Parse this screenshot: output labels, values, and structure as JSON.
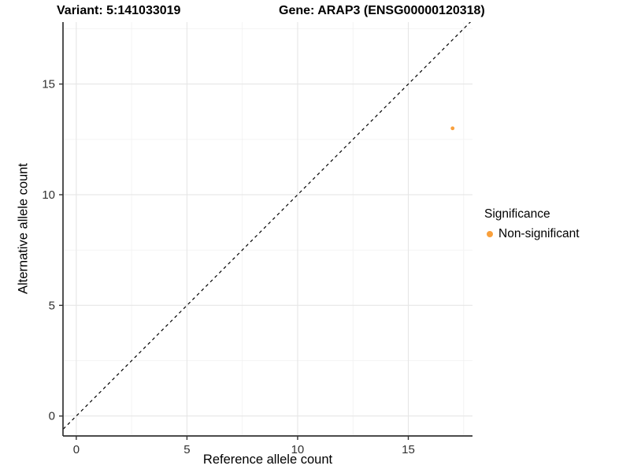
{
  "titles": {
    "variant": "Variant: 5:141033019",
    "gene": "Gene: ARAP3 (ENSG00000120318)"
  },
  "chart_data": {
    "type": "scatter",
    "xlabel": "Reference allele count",
    "ylabel": "Alternative allele count",
    "xlim": [
      -0.6,
      17.9
    ],
    "ylim": [
      -0.9,
      17.8
    ],
    "xticks": [
      0,
      5,
      10,
      15
    ],
    "yticks": [
      0,
      5,
      10,
      15
    ],
    "minor_xticks": [
      2.5,
      7.5,
      12.5,
      17.5
    ],
    "minor_yticks": [
      2.5,
      7.5,
      12.5,
      17.5
    ],
    "grid": true,
    "identity_line": {
      "slope": 1,
      "intercept": 0,
      "style": "dashed",
      "color": "#000000"
    },
    "series": [
      {
        "name": "Non-significant",
        "color": "#F9A03C",
        "points": [
          {
            "x": 17,
            "y": 13
          }
        ]
      }
    ],
    "legend": {
      "title": "Significance",
      "position": "right",
      "items": [
        {
          "label": "Non-significant",
          "color": "#F9A03C"
        }
      ]
    }
  },
  "colors": {
    "background": "#FFFFFF",
    "grid_major": "#E6E6E6",
    "grid_minor": "#F2F2F2",
    "axis_line": "#333333",
    "tick_text": "#303030",
    "title_text": "#000000"
  }
}
